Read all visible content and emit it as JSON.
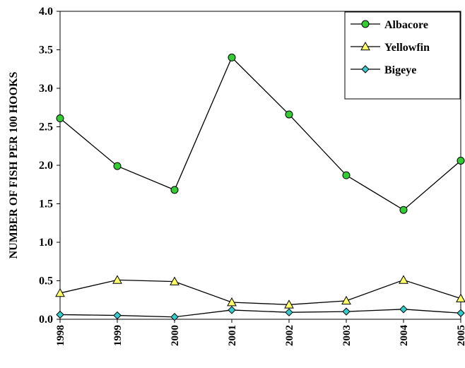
{
  "chart_data": {
    "type": "line",
    "title": "",
    "xlabel": "",
    "ylabel": "NUMBER OF FISH PER 100 HOOKS",
    "categories": [
      "1998",
      "1999",
      "2000",
      "2001",
      "2002",
      "2003",
      "2004",
      "2005"
    ],
    "yticks": [
      "0.0",
      "0.5",
      "1.0",
      "1.5",
      "2.0",
      "2.5",
      "3.0",
      "3.5",
      "4.0"
    ],
    "ylim": [
      0,
      4.0
    ],
    "grid": false,
    "legend_position": "top-right",
    "series": [
      {
        "name": "Albacore",
        "marker": "circle",
        "color": "#33cc33",
        "values": [
          2.61,
          1.99,
          1.68,
          3.4,
          2.66,
          1.87,
          1.42,
          2.06
        ]
      },
      {
        "name": "Yellowfin",
        "marker": "triangle",
        "color": "#ffff66",
        "values": [
          0.34,
          0.51,
          0.49,
          0.22,
          0.19,
          0.24,
          0.51,
          0.27
        ]
      },
      {
        "name": "Bigeye",
        "marker": "diamond",
        "color": "#33cccc",
        "values": [
          0.06,
          0.05,
          0.03,
          0.12,
          0.09,
          0.1,
          0.13,
          0.08
        ]
      }
    ]
  }
}
